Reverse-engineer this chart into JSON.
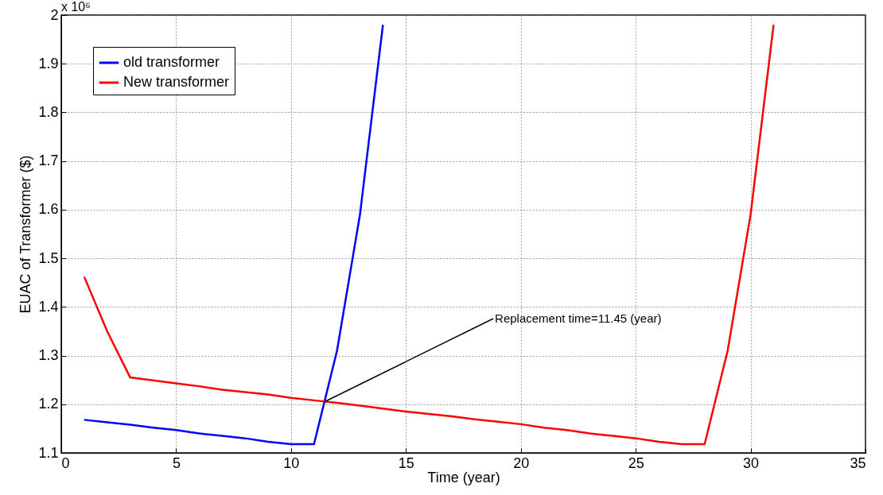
{
  "chart_data": {
    "type": "line",
    "xlabel": "Time (year)",
    "ylabel": "EUAC of Transformer ($)",
    "annotations": [
      "x 10⁶",
      {
        "text": "Replacement time=11.45 (year)",
        "x": 11.45,
        "y": 1.205
      }
    ],
    "x": [
      1,
      2,
      3,
      4,
      5,
      6,
      7,
      8,
      9,
      10,
      11,
      12,
      13,
      14,
      15,
      16,
      17,
      18,
      19,
      20,
      21,
      22,
      23,
      24,
      25,
      26,
      27,
      28,
      29,
      30,
      31
    ],
    "series": [
      {
        "name": "old transformer",
        "color": "#0000ff",
        "x": [
          1,
          2,
          3,
          4,
          5,
          6,
          7,
          8,
          9,
          10,
          11,
          12,
          13,
          14
        ],
        "values": [
          1.168,
          1.163,
          1.158,
          1.152,
          1.147,
          1.14,
          1.135,
          1.13,
          1.123,
          1.118,
          1.118,
          1.31,
          1.59,
          1.98
        ]
      },
      {
        "name": "New transformer",
        "color": "#ff0000",
        "values": [
          1.462,
          1.35,
          1.255,
          1.249,
          1.243,
          1.237,
          1.23,
          1.225,
          1.22,
          1.213,
          1.208,
          1.203,
          1.197,
          1.191,
          1.185,
          1.18,
          1.175,
          1.169,
          1.164,
          1.159,
          1.152,
          1.147,
          1.14,
          1.135,
          1.13,
          1.123,
          1.118,
          1.118,
          1.31,
          1.59,
          1.98
        ]
      }
    ],
    "xlim": [
      0,
      35
    ],
    "xticks": [
      0,
      5,
      10,
      15,
      20,
      25,
      30,
      35
    ],
    "ylim": [
      1.1,
      2
    ],
    "yticks": [
      1.1,
      1.2,
      1.3,
      1.4,
      1.5,
      1.6,
      1.7,
      1.8,
      1.9,
      2
    ],
    "grid": true,
    "legend": "top left",
    "marker": "none",
    "line_style": "solid"
  }
}
